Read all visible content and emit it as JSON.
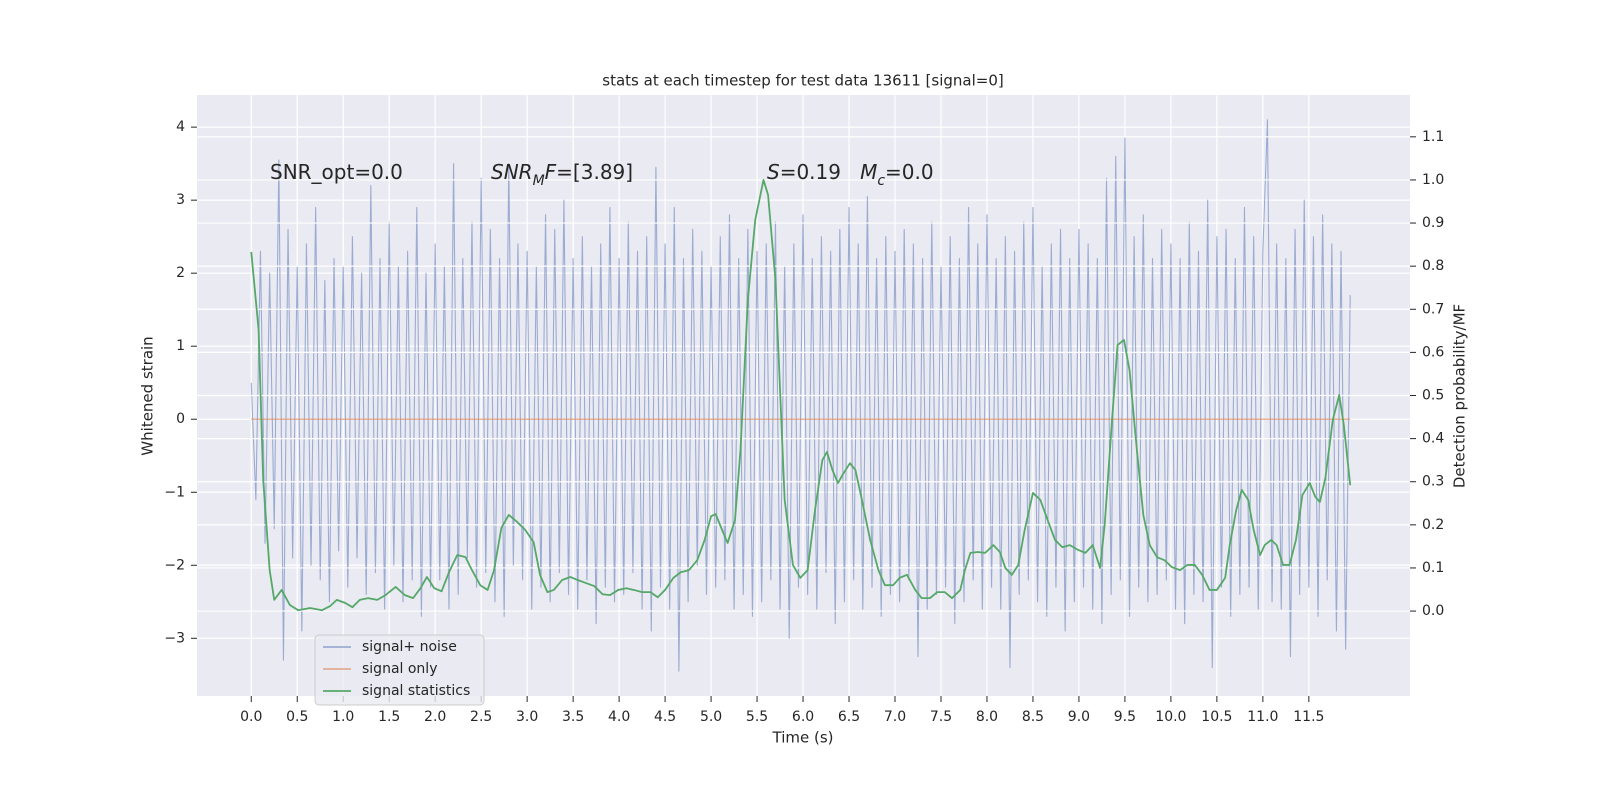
{
  "chart_data": {
    "type": "line",
    "title": "stats at each timestep for test data 13611 [signal=0]",
    "xlabel": "Time (s)",
    "ylabel": "Whitened strain",
    "y2label": "Detection probability/MF",
    "grid": true,
    "legend": "lower left",
    "xlim": [
      -0.59,
      12.6
    ],
    "ylim": [
      -3.79,
      4.44
    ],
    "y2lim": [
      -0.197,
      1.197
    ],
    "xticks": [
      {
        "value": 0,
        "label": "0.0"
      },
      0.5,
      {
        "value": 1,
        "label": "1.0"
      },
      1.5,
      {
        "value": 2,
        "label": "2.0"
      },
      2.5,
      {
        "value": 3,
        "label": "3.0"
      },
      3.5,
      {
        "value": 4,
        "label": "4.0"
      },
      4.5,
      {
        "value": 5,
        "label": "5.0"
      },
      5.5,
      {
        "value": 6,
        "label": "6.0"
      },
      6.5,
      {
        "value": 7,
        "label": "7.0"
      },
      7.5,
      {
        "value": 8,
        "label": "8.0"
      },
      8.5,
      {
        "value": 9,
        "label": "9.0"
      },
      9.5,
      {
        "value": 10,
        "label": "10.0"
      },
      10.5,
      {
        "value": 11,
        "label": "11.0"
      },
      11.5
    ],
    "yticks": [
      {
        "value": -3,
        "label": "−3"
      },
      {
        "value": -2,
        "label": "−2"
      },
      {
        "value": -1,
        "label": "−1"
      },
      0,
      1,
      2,
      3,
      4
    ],
    "y2ticks": [
      {
        "value": 0,
        "label": "0.0"
      },
      0.1,
      0.2,
      0.3,
      0.4,
      0.5,
      0.6,
      0.7,
      0.8,
      0.9,
      {
        "value": 1,
        "label": "1.0"
      },
      1.1
    ],
    "annotations": [
      [
        {
          "text": "SNR_opt=0.0"
        }
      ],
      [
        {
          "text": "SNR",
          "italic": true
        },
        {
          "text": "M",
          "italic": true,
          "sub": true
        },
        {
          "text": "F",
          "italic": true
        },
        {
          "text": "=[3.89]"
        }
      ],
      [
        {
          "text": "S",
          "italic": true
        },
        {
          "text": "=0.19   "
        },
        {
          "text": "M",
          "italic": true
        },
        {
          "text": "c",
          "italic": true,
          "sub": true
        },
        {
          "text": "=0.0"
        }
      ]
    ],
    "series": [
      {
        "name": "signal+ noise",
        "color": "#8da0cb",
        "x": [
          0,
          0.05,
          0.1,
          0.15,
          0.2,
          0.25,
          0.3,
          0.35,
          0.4,
          0.45,
          0.5,
          0.55,
          0.6,
          0.65,
          0.7,
          0.75,
          0.8,
          0.85,
          0.9,
          0.95,
          1,
          1.05,
          1.1,
          1.15,
          1.2,
          1.25,
          1.3,
          1.35,
          1.4,
          1.45,
          1.5,
          1.55,
          1.6,
          1.65,
          1.7,
          1.75,
          1.8,
          1.85,
          1.9,
          1.95,
          2,
          2.05,
          2.1,
          2.15,
          2.2,
          2.25,
          2.3,
          2.35,
          2.4,
          2.45,
          2.5,
          2.55,
          2.6,
          2.65,
          2.7,
          2.75,
          2.8,
          2.85,
          2.9,
          2.95,
          3,
          3.05,
          3.1,
          3.15,
          3.2,
          3.25,
          3.3,
          3.35,
          3.4,
          3.45,
          3.5,
          3.55,
          3.6,
          3.65,
          3.7,
          3.75,
          3.8,
          3.85,
          3.9,
          3.95,
          4,
          4.05,
          4.1,
          4.15,
          4.2,
          4.25,
          4.3,
          4.35,
          4.4,
          4.45,
          4.5,
          4.55,
          4.6,
          4.65,
          4.7,
          4.75,
          4.8,
          4.85,
          4.9,
          4.95,
          5,
          5.05,
          5.1,
          5.15,
          5.2,
          5.25,
          5.3,
          5.35,
          5.4,
          5.45,
          5.5,
          5.55,
          5.6,
          5.65,
          5.7,
          5.75,
          5.8,
          5.85,
          5.9,
          5.95,
          6,
          6.05,
          6.1,
          6.15,
          6.2,
          6.25,
          6.3,
          6.35,
          6.4,
          6.45,
          6.5,
          6.55,
          6.6,
          6.65,
          6.7,
          6.75,
          6.8,
          6.85,
          6.9,
          6.95,
          7,
          7.05,
          7.1,
          7.15,
          7.2,
          7.25,
          7.3,
          7.35,
          7.4,
          7.45,
          7.5,
          7.55,
          7.6,
          7.65,
          7.7,
          7.75,
          7.8,
          7.85,
          7.9,
          7.95,
          8,
          8.05,
          8.1,
          8.15,
          8.2,
          8.25,
          8.3,
          8.35,
          8.4,
          8.45,
          8.5,
          8.55,
          8.6,
          8.65,
          8.7,
          8.75,
          8.8,
          8.85,
          8.9,
          8.95,
          9,
          9.05,
          9.1,
          9.15,
          9.2,
          9.25,
          9.3,
          9.35,
          9.4,
          9.45,
          9.5,
          9.55,
          9.6,
          9.65,
          9.7,
          9.75,
          9.8,
          9.85,
          9.9,
          9.95,
          10,
          10.05,
          10.1,
          10.15,
          10.2,
          10.25,
          10.3,
          10.35,
          10.4,
          10.45,
          10.5,
          10.55,
          10.6,
          10.65,
          10.7,
          10.75,
          10.8,
          10.85,
          10.9,
          10.95,
          11,
          11.05,
          11.1,
          11.15,
          11.2,
          11.25,
          11.3,
          11.35,
          11.4,
          11.45,
          11.5,
          11.55,
          11.6,
          11.65,
          11.7,
          11.75,
          11.8,
          11.85,
          11.9,
          11.95
        ],
        "values": [
          0.5,
          -1.1,
          2.3,
          -1.7,
          2.0,
          -1.5,
          3.55,
          -3.3,
          2.6,
          -1.9,
          2.1,
          -2.9,
          2.4,
          -2.0,
          2.9,
          -2.2,
          1.9,
          -2.5,
          2.2,
          -1.8,
          2.1,
          -2.3,
          2.5,
          -1.9,
          2.0,
          -2.4,
          3.2,
          -2.1,
          2.2,
          -2.6,
          2.7,
          -2.0,
          2.1,
          -2.5,
          2.3,
          -2.2,
          2.9,
          -2.7,
          2.0,
          -2.3,
          2.4,
          -2.2,
          2.1,
          -2.6,
          3.5,
          -2.4,
          2.2,
          -1.9,
          2.7,
          -2.3,
          3.3,
          -2.1,
          2.6,
          -2.5,
          2.2,
          -2.7,
          3.5,
          -2.0,
          2.4,
          -2.2,
          2.3,
          -2.6,
          2.1,
          -2.3,
          2.8,
          -2.5,
          2.6,
          -2.1,
          3.0,
          -2.4,
          2.2,
          -2.6,
          2.5,
          -2.2,
          2.1,
          -2.8,
          2.4,
          -2.3,
          2.9,
          -2.5,
          2.2,
          -2.4,
          2.7,
          -2.1,
          2.3,
          -2.6,
          2.5,
          -2.9,
          3.45,
          -2.3,
          2.4,
          -2.6,
          2.9,
          -3.45,
          2.2,
          -2.5,
          2.6,
          -2.0,
          2.3,
          -2.4,
          2.1,
          -2.3,
          2.5,
          -2.2,
          2.8,
          -2.6,
          2.2,
          -2.4,
          2.6,
          -2.7,
          2.3,
          -2.5,
          2.4,
          -2.2,
          2.7,
          -2.6,
          2.1,
          -3.0,
          2.4,
          -2.3,
          2.8,
          -2.4,
          2.2,
          -2.6,
          2.5,
          -2.1,
          2.3,
          -2.8,
          2.6,
          -2.5,
          2.9,
          -2.2,
          2.4,
          -2.6,
          3.05,
          -2.3,
          2.2,
          -2.7,
          2.5,
          -2.4,
          2.3,
          -2.5,
          2.6,
          -2.2,
          2.4,
          -3.25,
          2.2,
          -2.6,
          2.7,
          -2.4,
          2.1,
          -2.3,
          2.5,
          -2.8,
          2.2,
          -2.5,
          2.9,
          -2.2,
          2.4,
          -2.6,
          2.8,
          -2.3,
          2.2,
          -2.6,
          2.5,
          -3.4,
          2.3,
          -2.4,
          2.7,
          -2.2,
          2.9,
          -2.5,
          2.1,
          -2.7,
          2.4,
          -2.3,
          2.6,
          -2.9,
          2.2,
          -2.5,
          2.6,
          -2.3,
          2.4,
          -2.6,
          2.2,
          -2.8,
          3.3,
          -2.4,
          3.6,
          -2.2,
          3.85,
          -2.7,
          2.5,
          -2.3,
          2.8,
          -2.5,
          2.2,
          -2.4,
          2.6,
          -2.2,
          2.4,
          -2.6,
          2.2,
          -2.8,
          2.7,
          -2.4,
          2.3,
          -2.5,
          3.0,
          -3.4,
          2.5,
          -2.3,
          2.6,
          -2.7,
          2.2,
          -2.4,
          2.9,
          -2.3,
          2.5,
          -2.6,
          2.3,
          4.1,
          -2.5,
          2.4,
          -2.6,
          2.2,
          -3.25,
          2.6,
          -2.4,
          3.0,
          -2.3,
          2.5,
          -2.7,
          2.8,
          -2.2,
          2.4,
          -2.9,
          2.3,
          -3.15,
          1.7
        ]
      },
      {
        "name": "signal only",
        "color": "#dd8452",
        "x": [
          0,
          11.95
        ],
        "values": [
          0,
          0
        ]
      },
      {
        "name": "signal statistics",
        "color": "#55a868",
        "axis": "y2",
        "x": [
          0,
          0.08,
          0.13,
          0.2,
          0.25,
          0.33,
          0.42,
          0.51,
          0.64,
          0.77,
          0.86,
          0.93,
          1.02,
          1.1,
          1.18,
          1.27,
          1.37,
          1.46,
          1.57,
          1.67,
          1.76,
          1.84,
          1.91,
          1.99,
          2.07,
          2.15,
          2.24,
          2.33,
          2.4,
          2.49,
          2.57,
          2.64,
          2.72,
          2.8,
          2.89,
          2.98,
          3.07,
          3.14,
          3.22,
          3.29,
          3.38,
          3.47,
          3.55,
          3.64,
          3.73,
          3.82,
          3.9,
          3.99,
          4.08,
          4.16,
          4.25,
          4.34,
          4.42,
          4.5,
          4.59,
          4.67,
          4.76,
          4.85,
          4.93,
          5.0,
          5.05,
          5.12,
          5.18,
          5.26,
          5.32,
          5.4,
          5.48,
          5.57,
          5.62,
          5.7,
          5.8,
          5.89,
          5.97,
          6.05,
          6.13,
          6.21,
          6.26,
          6.32,
          6.38,
          6.43,
          6.51,
          6.57,
          6.64,
          6.73,
          6.82,
          6.89,
          6.98,
          7.05,
          7.13,
          7.22,
          7.29,
          7.38,
          7.46,
          7.54,
          7.62,
          7.71,
          7.76,
          7.82,
          7.9,
          7.98,
          8.07,
          8.14,
          8.2,
          8.27,
          8.34,
          8.41,
          8.5,
          8.58,
          8.66,
          8.74,
          8.82,
          8.9,
          8.99,
          9.07,
          9.15,
          9.23,
          9.28,
          9.36,
          9.42,
          9.49,
          9.55,
          9.63,
          9.7,
          9.77,
          9.85,
          9.93,
          10.01,
          10.1,
          10.18,
          10.26,
          10.34,
          10.42,
          10.5,
          10.59,
          10.64,
          10.71,
          10.77,
          10.84,
          10.9,
          10.97,
          11.02,
          11.09,
          11.15,
          11.22,
          11.29,
          11.36,
          11.43,
          11.51,
          11.57,
          11.62,
          11.68,
          11.76,
          11.83,
          11.88,
          11.95
        ],
        "values": [
          0.833,
          0.652,
          0.304,
          0.095,
          0.026,
          0.049,
          0.014,
          0.002,
          0.007,
          0.002,
          0.012,
          0.026,
          0.019,
          0.009,
          0.026,
          0.03,
          0.026,
          0.037,
          0.056,
          0.037,
          0.03,
          0.053,
          0.079,
          0.053,
          0.046,
          0.09,
          0.13,
          0.125,
          0.095,
          0.06,
          0.049,
          0.095,
          0.193,
          0.223,
          0.207,
          0.188,
          0.16,
          0.084,
          0.044,
          0.049,
          0.072,
          0.079,
          0.072,
          0.065,
          0.058,
          0.039,
          0.037,
          0.049,
          0.053,
          0.049,
          0.044,
          0.044,
          0.032,
          0.049,
          0.077,
          0.09,
          0.095,
          0.118,
          0.165,
          0.22,
          0.225,
          0.188,
          0.158,
          0.211,
          0.374,
          0.722,
          0.907,
          1.0,
          0.965,
          0.768,
          0.258,
          0.107,
          0.077,
          0.095,
          0.234,
          0.35,
          0.369,
          0.327,
          0.297,
          0.316,
          0.343,
          0.327,
          0.258,
          0.165,
          0.095,
          0.06,
          0.06,
          0.077,
          0.084,
          0.049,
          0.03,
          0.03,
          0.044,
          0.044,
          0.03,
          0.049,
          0.095,
          0.135,
          0.137,
          0.135,
          0.153,
          0.137,
          0.1,
          0.084,
          0.107,
          0.188,
          0.274,
          0.258,
          0.211,
          0.165,
          0.148,
          0.153,
          0.142,
          0.135,
          0.153,
          0.1,
          0.2,
          0.443,
          0.617,
          0.629,
          0.559,
          0.374,
          0.223,
          0.153,
          0.125,
          0.118,
          0.102,
          0.095,
          0.107,
          0.107,
          0.084,
          0.049,
          0.049,
          0.077,
          0.153,
          0.234,
          0.281,
          0.258,
          0.188,
          0.13,
          0.153,
          0.165,
          0.153,
          0.107,
          0.107,
          0.165,
          0.269,
          0.297,
          0.265,
          0.253,
          0.309,
          0.443,
          0.501,
          0.432,
          0.292
        ]
      }
    ]
  }
}
